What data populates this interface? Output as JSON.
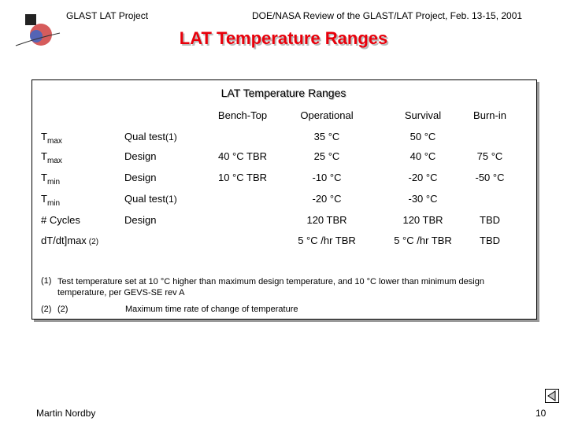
{
  "header": {
    "left": "GLAST LAT Project",
    "right": "DOE/NASA Review of the GLAST/LAT Project, Feb. 13-15, 2001"
  },
  "title": "LAT Temperature Ranges",
  "table": {
    "title": "LAT Temperature Ranges",
    "columns": [
      "Bench-Top",
      "Operational",
      "Survival",
      "Burn-in"
    ],
    "rows": [
      {
        "param": "T",
        "sub": "max",
        "condition": "Qual test",
        "note": "(1)",
        "values": [
          null,
          "35 °C",
          "50 °C",
          null
        ]
      },
      {
        "param": "T",
        "sub": "max",
        "condition": "Design",
        "note": null,
        "values": [
          "40 °C TBR",
          "25 °C",
          "40 °C",
          "75 °C"
        ]
      },
      {
        "param": "T",
        "sub": "min",
        "condition": "Design",
        "note": null,
        "values": [
          "10 °C TBR",
          "-10 °C",
          "-20 °C",
          "-50 °C"
        ]
      },
      {
        "param": "T",
        "sub": "min",
        "condition": "Qual test",
        "note": "(1)",
        "values": [
          null,
          "-20 °C",
          "-30 °C",
          null
        ]
      },
      {
        "param": "# Cycles",
        "sub": null,
        "condition": "Design",
        "note": null,
        "values": [
          null,
          "120 TBR",
          "120 TBR",
          "TBD"
        ]
      },
      {
        "param": "dT/dt]max",
        "sub": "(2)",
        "condition": null,
        "note": null,
        "values": [
          null,
          "5 °C /hr TBR",
          "5 °C /hr TBR",
          "TBD"
        ]
      }
    ]
  },
  "footnotes": [
    {
      "marker": "(1)",
      "text": "Test temperature set at 10 °C higher than maximum design temperature, and 10 °C lower than minimum design temperature, per GEVS-SE rev A"
    },
    {
      "marker": "(2)",
      "label": "(2)",
      "text": "Maximum time rate of change of temperature"
    }
  ],
  "footer": {
    "author": "Martin Nordby",
    "page": "10"
  }
}
